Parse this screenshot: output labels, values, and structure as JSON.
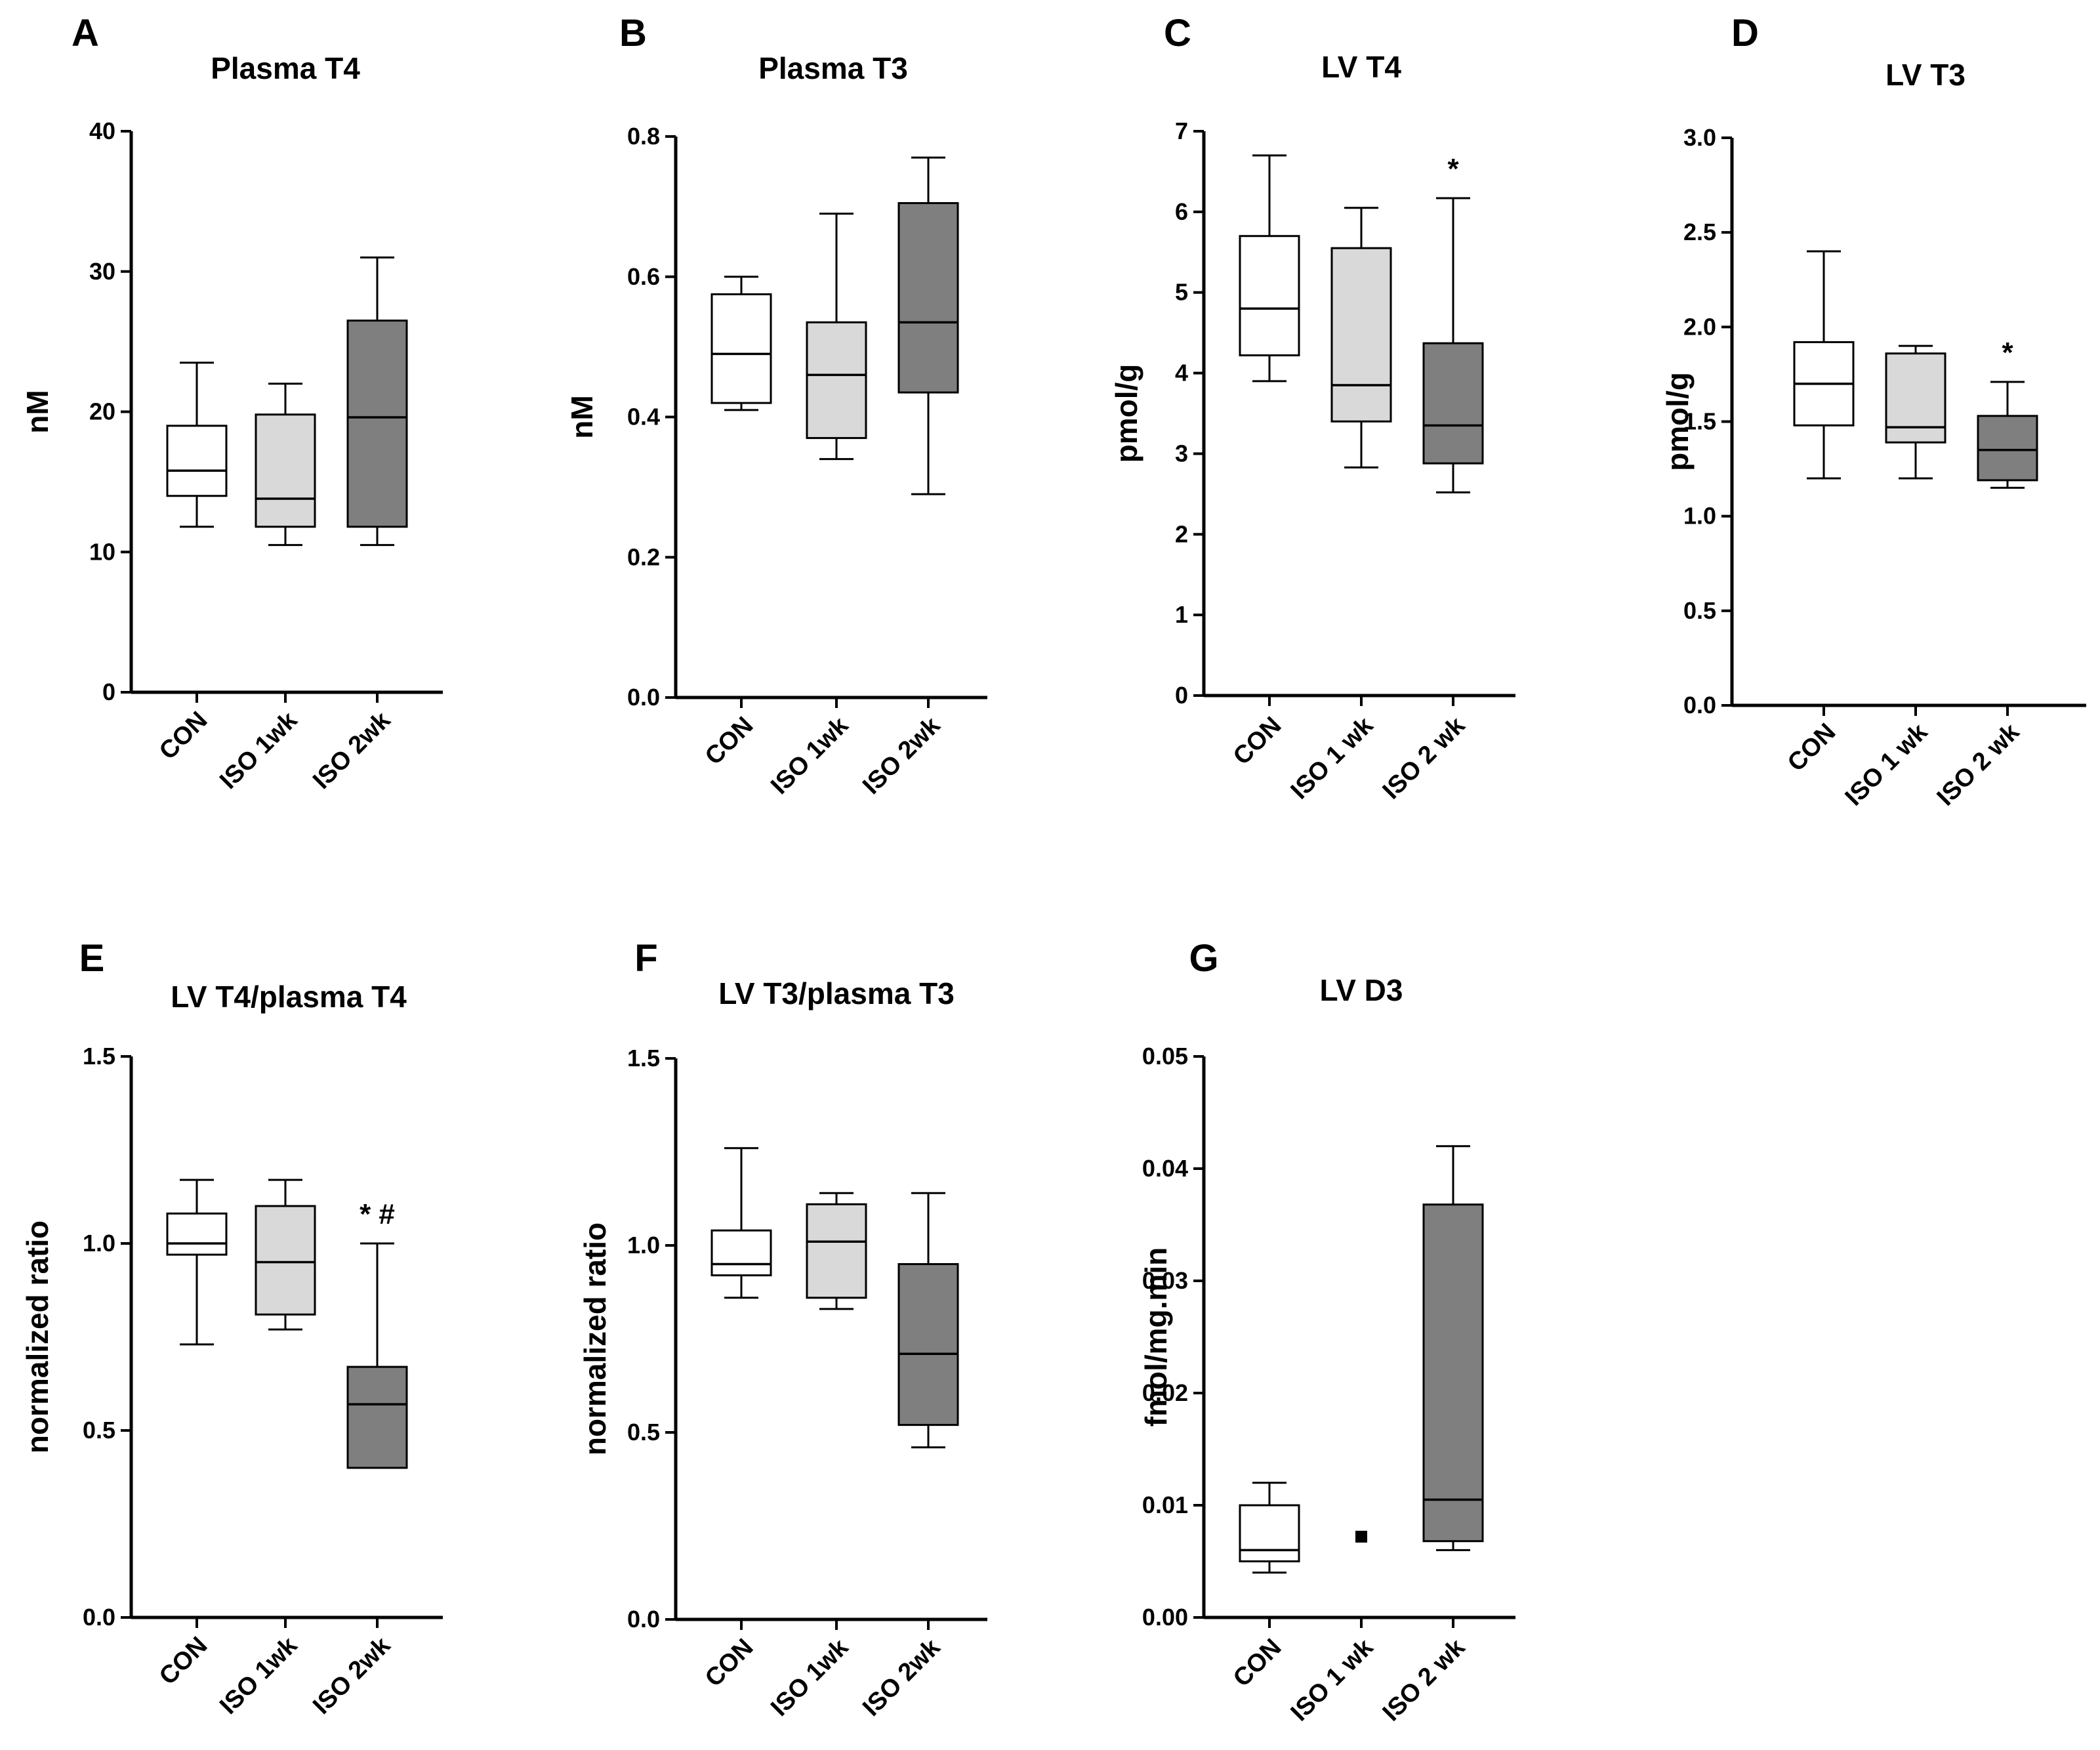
{
  "figure": {
    "panels": [
      {
        "letter": "A",
        "title": "Plasma T4",
        "ylabel": "nM"
      },
      {
        "letter": "B",
        "title": "Plasma T3",
        "ylabel": "nM"
      },
      {
        "letter": "C",
        "title": "LV T4",
        "ylabel": "pmol/g"
      },
      {
        "letter": "D",
        "title": "LV T3",
        "ylabel": "pmol/g"
      },
      {
        "letter": "E",
        "title": "LV T4/plasma T4",
        "ylabel": "normalized ratio"
      },
      {
        "letter": "F",
        "title": "LV T3/plasma T3",
        "ylabel": "normalized ratio"
      },
      {
        "letter": "G",
        "title": "LV D3",
        "ylabel": "fmol/mg.min"
      }
    ]
  },
  "colors": {
    "con_fill": "#ffffff",
    "iso1_fill": "#d9d9d9",
    "iso2_fill": "#7f7f7f",
    "stroke": "#000000"
  },
  "chart_data": [
    {
      "id": "A",
      "type": "box",
      "title": "Plasma T4",
      "ylabel": "nM",
      "ylim": [
        0,
        40
      ],
      "yticks": [
        0,
        10,
        20,
        30,
        40
      ],
      "ytick_labels": [
        "0",
        "10",
        "20",
        "30",
        "40"
      ],
      "categories": [
        "CON",
        "ISO 1wk",
        "ISO 2wk"
      ],
      "boxes": [
        {
          "min": 11.8,
          "q1": 14.0,
          "median": 15.8,
          "q3": 19.0,
          "max": 23.5
        },
        {
          "min": 10.5,
          "q1": 11.8,
          "median": 13.8,
          "q3": 19.8,
          "max": 22.0
        },
        {
          "min": 10.5,
          "q1": 11.8,
          "median": 19.6,
          "q3": 26.5,
          "max": 31.0
        }
      ],
      "annotations": [
        "",
        "",
        ""
      ]
    },
    {
      "id": "B",
      "type": "box",
      "title": "Plasma T3",
      "ylabel": "nM",
      "ylim": [
        0,
        0.8
      ],
      "yticks": [
        0,
        0.2,
        0.4,
        0.6,
        0.8
      ],
      "ytick_labels": [
        "0.0",
        "0.2",
        "0.4",
        "0.6",
        "0.8"
      ],
      "categories": [
        "CON",
        "ISO 1wk",
        "ISO 2wk"
      ],
      "boxes": [
        {
          "min": 0.41,
          "q1": 0.42,
          "median": 0.49,
          "q3": 0.575,
          "max": 0.6
        },
        {
          "min": 0.34,
          "q1": 0.37,
          "median": 0.46,
          "q3": 0.535,
          "max": 0.69
        },
        {
          "min": 0.29,
          "q1": 0.435,
          "median": 0.535,
          "q3": 0.705,
          "max": 0.77
        }
      ],
      "annotations": [
        "",
        "",
        ""
      ]
    },
    {
      "id": "C",
      "type": "box",
      "title": "LV T4",
      "ylabel": "pmol/g",
      "ylim": [
        0,
        7
      ],
      "yticks": [
        0,
        1,
        2,
        3,
        4,
        5,
        6,
        7
      ],
      "ytick_labels": [
        "0",
        "1",
        "2",
        "3",
        "4",
        "5",
        "6",
        "7"
      ],
      "categories": [
        "CON",
        "ISO 1 wk",
        "ISO 2 wk"
      ],
      "boxes": [
        {
          "min": 3.9,
          "q1": 4.22,
          "median": 4.8,
          "q3": 5.7,
          "max": 6.7
        },
        {
          "min": 2.83,
          "q1": 3.4,
          "median": 3.85,
          "q3": 5.55,
          "max": 6.05
        },
        {
          "min": 2.52,
          "q1": 2.88,
          "median": 3.35,
          "q3": 4.37,
          "max": 6.17
        }
      ],
      "annotations": [
        "",
        "",
        "*"
      ]
    },
    {
      "id": "D",
      "type": "box",
      "title": "LV T3",
      "ylabel": "pmol/g",
      "ylim": [
        0,
        3
      ],
      "yticks": [
        0,
        0.5,
        1,
        1.5,
        2,
        2.5,
        3
      ],
      "ytick_labels": [
        "0.0",
        "0.5",
        "1.0",
        "1.5",
        "2.0",
        "2.5",
        "3.0"
      ],
      "categories": [
        "CON",
        "ISO 1 wk",
        "ISO 2 wk"
      ],
      "boxes": [
        {
          "min": 1.2,
          "q1": 1.48,
          "median": 1.7,
          "q3": 1.92,
          "max": 2.4
        },
        {
          "min": 1.2,
          "q1": 1.39,
          "median": 1.47,
          "q3": 1.86,
          "max": 1.9
        },
        {
          "min": 1.15,
          "q1": 1.19,
          "median": 1.35,
          "q3": 1.53,
          "max": 1.71
        }
      ],
      "annotations": [
        "",
        "",
        "*"
      ]
    },
    {
      "id": "E",
      "type": "box",
      "title": "LV T4/plasma T4",
      "ylabel": "normalized ratio",
      "ylim": [
        0,
        1.5
      ],
      "yticks": [
        0,
        0.5,
        1,
        1.5
      ],
      "ytick_labels": [
        "0.0",
        "0.5",
        "1.0",
        "1.5"
      ],
      "categories": [
        "CON",
        "ISO 1wk",
        "ISO 2wk"
      ],
      "boxes": [
        {
          "min": 0.73,
          "q1": 0.97,
          "median": 1.0,
          "q3": 1.08,
          "max": 1.17
        },
        {
          "min": 0.77,
          "q1": 0.81,
          "median": 0.95,
          "q3": 1.1,
          "max": 1.17
        },
        {
          "min": 0.4,
          "q1": 0.4,
          "median": 0.57,
          "q3": 0.67,
          "max": 1.0
        }
      ],
      "annotations": [
        "",
        "",
        "* #"
      ]
    },
    {
      "id": "F",
      "type": "box",
      "title": "LV T3/plasma T3",
      "ylabel": "normalized ratio",
      "ylim": [
        0,
        1.5
      ],
      "yticks": [
        0,
        0.5,
        1,
        1.5
      ],
      "ytick_labels": [
        "0.0",
        "0.5",
        "1.0",
        "1.5"
      ],
      "categories": [
        "CON",
        "ISO 1wk",
        "ISO 2wk"
      ],
      "boxes": [
        {
          "min": 0.86,
          "q1": 0.92,
          "median": 0.95,
          "q3": 1.04,
          "max": 1.26
        },
        {
          "min": 0.83,
          "q1": 0.86,
          "median": 1.01,
          "q3": 1.11,
          "max": 1.14
        },
        {
          "min": 0.46,
          "q1": 0.52,
          "median": 0.71,
          "q3": 0.95,
          "max": 1.14
        }
      ],
      "annotations": [
        "",
        "",
        ""
      ]
    },
    {
      "id": "G",
      "type": "box",
      "title": "LV D3",
      "ylabel": "fmol/mg.min",
      "ylim": [
        0,
        0.05
      ],
      "yticks": [
        0,
        0.01,
        0.02,
        0.03,
        0.04,
        0.05
      ],
      "ytick_labels": [
        "0.00",
        "0.01",
        "0.02",
        "0.03",
        "0.04",
        "0.05"
      ],
      "categories": [
        "CON",
        "ISO 1 wk",
        "ISO 2 wk"
      ],
      "boxes": [
        {
          "min": 0.004,
          "q1": 0.005,
          "median": 0.006,
          "q3": 0.01,
          "max": 0.012
        },
        {
          "point": 0.0072
        },
        {
          "min": 0.006,
          "q1": 0.0068,
          "median": 0.0105,
          "q3": 0.0368,
          "max": 0.042
        }
      ],
      "annotations": [
        "",
        "",
        ""
      ]
    }
  ]
}
